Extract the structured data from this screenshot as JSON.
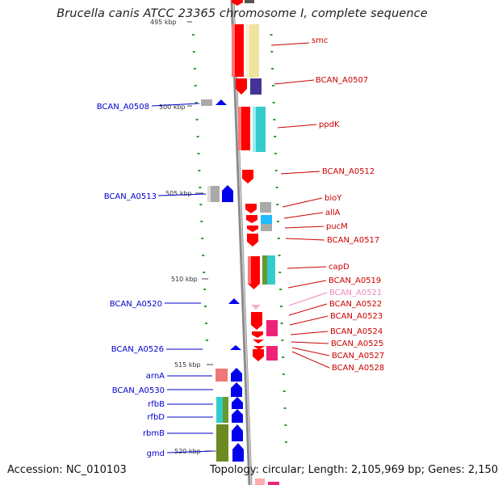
{
  "title": "Brucella canis ATCC 23365 chromosome I, complete sequence",
  "footer": {
    "accession": "Accession: NC_010103",
    "summary": "Topology: circular; Length: 2,105,969 bp; Genes: 2,150"
  },
  "ticks": [
    "495 kbp",
    "500 kbp",
    "505 kbp",
    "510 kbp",
    "515 kbp",
    "520 kbp"
  ],
  "colors": {
    "forward_label": "#cc0000",
    "reverse_label": "#0000cc",
    "highlight_label": "#ee88bb",
    "forward_gene": "#ff0000",
    "reverse_gene": "#0000ee",
    "backbone": "#888888",
    "scale_dots": "#339933"
  },
  "labels_right": [
    "smc",
    "BCAN_A0507",
    "ppdK",
    "BCAN_A0512",
    "bioY",
    "allA",
    "pucM",
    "BCAN_A0517",
    "capD",
    "BCAN_A0519",
    "BCAN_A0521",
    "BCAN_A0522",
    "BCAN_A0523",
    "BCAN_A0524",
    "BCAN_A0525",
    "BCAN_A0527",
    "BCAN_A0528"
  ],
  "labels_left": [
    "BCAN_A0508",
    "BCAN_A0513",
    "BCAN_A0520",
    "BCAN_A0526",
    "arnA",
    "BCAN_A0530",
    "rfbB",
    "rfbD",
    "rbmB",
    "gmd"
  ]
}
